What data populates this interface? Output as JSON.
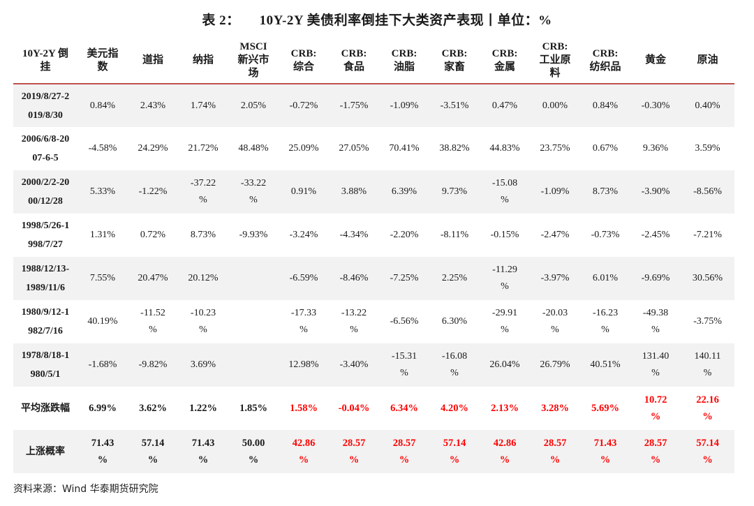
{
  "title_prefix": "表 2：",
  "title_main": "10Y-2Y 美债利率倒挂下大类资产表现丨单位：%",
  "headers": [
    [
      "10Y-2Y 倒",
      "挂"
    ],
    [
      "美元指",
      "数"
    ],
    [
      "道指"
    ],
    [
      "纳指"
    ],
    [
      "MSCI",
      "新兴市",
      "场"
    ],
    [
      "CRB:",
      "综合"
    ],
    [
      "CRB:",
      "食品"
    ],
    [
      "CRB:",
      "油脂"
    ],
    [
      "CRB:",
      "家畜"
    ],
    [
      "CRB:",
      "金属"
    ],
    [
      "CRB:",
      "工业原",
      "料"
    ],
    [
      "CRB:",
      "纺织品"
    ],
    [
      "黄金"
    ],
    [
      "原油"
    ]
  ],
  "rows": [
    {
      "period": [
        "2019/8/27-2",
        "019/8/30"
      ],
      "cells": [
        [
          "0.84%"
        ],
        [
          "2.43%"
        ],
        [
          "1.74%"
        ],
        [
          "2.05%"
        ],
        [
          "-0.72%"
        ],
        [
          "-1.75%"
        ],
        [
          "-1.09%"
        ],
        [
          "-3.51%"
        ],
        [
          "0.47%"
        ],
        [
          "0.00%"
        ],
        [
          "0.84%"
        ],
        [
          "-0.30%"
        ],
        [
          "0.40%"
        ]
      ]
    },
    {
      "period": [
        "2006/6/8-20",
        "07-6-5"
      ],
      "cells": [
        [
          "-4.58%"
        ],
        [
          "24.29%"
        ],
        [
          "21.72%"
        ],
        [
          "48.48%"
        ],
        [
          "25.09%"
        ],
        [
          "27.05%"
        ],
        [
          "70.41%"
        ],
        [
          "38.82%"
        ],
        [
          "44.83%"
        ],
        [
          "23.75%"
        ],
        [
          "0.67%"
        ],
        [
          "9.36%"
        ],
        [
          "3.59%"
        ]
      ]
    },
    {
      "period": [
        "2000/2/2-20",
        "00/12/28"
      ],
      "cells": [
        [
          "5.33%"
        ],
        [
          "-1.22%"
        ],
        [
          "-37.22",
          "%"
        ],
        [
          "-33.22",
          "%"
        ],
        [
          "0.91%"
        ],
        [
          "3.88%"
        ],
        [
          "6.39%"
        ],
        [
          "9.73%"
        ],
        [
          "-15.08",
          "%"
        ],
        [
          "-1.09%"
        ],
        [
          "8.73%"
        ],
        [
          "-3.90%"
        ],
        [
          "-8.56%"
        ]
      ]
    },
    {
      "period": [
        "1998/5/26-1",
        "998/7/27"
      ],
      "cells": [
        [
          "1.31%"
        ],
        [
          "0.72%"
        ],
        [
          "8.73%"
        ],
        [
          "-9.93%"
        ],
        [
          "-3.24%"
        ],
        [
          "-4.34%"
        ],
        [
          "-2.20%"
        ],
        [
          "-8.11%"
        ],
        [
          "-0.15%"
        ],
        [
          "-2.47%"
        ],
        [
          "-0.73%"
        ],
        [
          "-2.45%"
        ],
        [
          "-7.21%"
        ]
      ]
    },
    {
      "period": [
        "1988/12/13-",
        "1989/11/6"
      ],
      "cells": [
        [
          "7.55%"
        ],
        [
          "20.47%"
        ],
        [
          "20.12%"
        ],
        [
          ""
        ],
        [
          "-6.59%"
        ],
        [
          "-8.46%"
        ],
        [
          "-7.25%"
        ],
        [
          "2.25%"
        ],
        [
          "-11.29",
          "%"
        ],
        [
          "-3.97%"
        ],
        [
          "6.01%"
        ],
        [
          "-9.69%"
        ],
        [
          "30.56%"
        ]
      ]
    },
    {
      "period": [
        "1980/9/12-1",
        "982/7/16"
      ],
      "cells": [
        [
          "40.19%"
        ],
        [
          "-11.52",
          "%"
        ],
        [
          "-10.23",
          "%"
        ],
        [
          ""
        ],
        [
          "-17.33",
          "%"
        ],
        [
          "-13.22",
          "%"
        ],
        [
          "-6.56%"
        ],
        [
          "6.30%"
        ],
        [
          "-29.91",
          "%"
        ],
        [
          "-20.03",
          "%"
        ],
        [
          "-16.23",
          "%"
        ],
        [
          "-49.38",
          "%"
        ],
        [
          "-3.75%"
        ]
      ]
    },
    {
      "period": [
        "1978/8/18-1",
        "980/5/1"
      ],
      "cells": [
        [
          "-1.68%"
        ],
        [
          "-9.82%"
        ],
        [
          "3.69%"
        ],
        [
          ""
        ],
        [
          "12.98%"
        ],
        [
          "-3.40%"
        ],
        [
          "-15.31",
          "%"
        ],
        [
          "-16.08",
          "%"
        ],
        [
          "26.04%"
        ],
        [
          "26.79%"
        ],
        [
          "40.51%"
        ],
        [
          "131.40",
          "%"
        ],
        [
          "140.11",
          "%"
        ]
      ]
    }
  ],
  "avg_row": {
    "label": "平均涨跌幅",
    "cells": [
      [
        "6.99%"
      ],
      [
        "3.62%"
      ],
      [
        "1.22%"
      ],
      [
        "1.85%"
      ],
      [
        "1.58%"
      ],
      [
        "-0.04%"
      ],
      [
        "6.34%"
      ],
      [
        "4.20%"
      ],
      [
        "2.13%"
      ],
      [
        "3.28%"
      ],
      [
        "5.69%"
      ],
      [
        "10.72",
        "%"
      ],
      [
        "22.16",
        "%"
      ]
    ]
  },
  "rate_row": {
    "label": "上涨概率",
    "cells": [
      [
        "71.43",
        "%"
      ],
      [
        "57.14",
        "%"
      ],
      [
        "71.43",
        "%"
      ],
      [
        "50.00",
        "%"
      ],
      [
        "42.86",
        "%"
      ],
      [
        "28.57",
        "%"
      ],
      [
        "28.57",
        "%"
      ],
      [
        "57.14",
        "%"
      ],
      [
        "42.86",
        "%"
      ],
      [
        "28.57",
        "%"
      ],
      [
        "71.43",
        "%"
      ],
      [
        "28.57",
        "%"
      ],
      [
        "57.14",
        "%"
      ]
    ]
  },
  "highlight_color": "#ff0000",
  "accent_line_color": "#c0504d",
  "red_from_column_index": 4,
  "source": "资料来源：Wind  华泰期货研究院"
}
